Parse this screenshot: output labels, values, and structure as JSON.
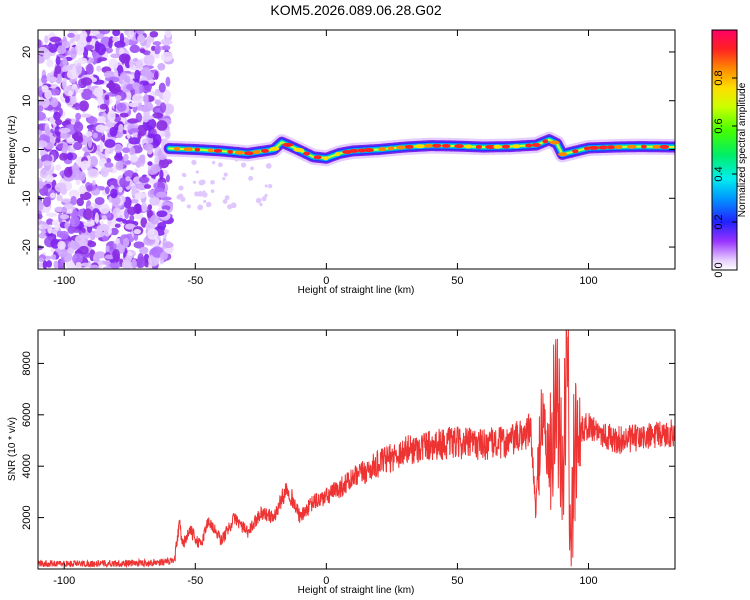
{
  "title": "KOM5.2026.089.06.28.G02",
  "chart_data": [
    {
      "type": "heatmap",
      "xlabel": "Height of straight line (km)",
      "ylabel": "Frequency (Hz)",
      "xlim": [
        -110,
        133
      ],
      "ylim": [
        -24.5,
        24.5
      ],
      "xticks": [
        -100,
        -50,
        0,
        50,
        100
      ],
      "yticks": [
        -20,
        -10,
        0,
        10,
        20
      ],
      "noise_region_x": [
        -110,
        -60
      ],
      "colorbar": {
        "label": "Normalized spectral amplitude",
        "range": [
          0.0,
          1.0
        ],
        "ticks": [
          0.0,
          0.2,
          0.4,
          0.6,
          0.8
        ],
        "colormap": "rainbow"
      },
      "ridge": {
        "x": [
          -60,
          -50,
          -40,
          -30,
          -20,
          -17,
          -12,
          -5,
          0,
          5,
          10,
          20,
          30,
          40,
          50,
          60,
          70,
          80,
          85,
          88,
          90,
          100,
          110,
          120,
          133
        ],
        "frequency": [
          0.2,
          0.0,
          -0.3,
          -0.8,
          0.0,
          1.5,
          0.3,
          -1.5,
          -1.8,
          -0.8,
          -0.3,
          0.0,
          0.5,
          0.8,
          0.7,
          0.5,
          0.6,
          0.9,
          2.0,
          1.2,
          -1.0,
          0.3,
          0.5,
          0.6,
          0.5
        ]
      }
    },
    {
      "type": "line",
      "xlabel": "Height of straight line (km)",
      "ylabel": "SNR (10 * v/v)",
      "xlim": [
        -110,
        133
      ],
      "ylim": [
        0,
        9300
      ],
      "xticks": [
        -100,
        -50,
        0,
        50,
        100
      ],
      "yticks": [
        2000,
        4000,
        6000,
        8000
      ],
      "series": [
        {
          "color": "#ee3333",
          "x": [
            -110,
            -90,
            -70,
            -58,
            -56,
            -55,
            -52,
            -48,
            -45,
            -40,
            -35,
            -30,
            -25,
            -20,
            -15,
            -10,
            -5,
            0,
            10,
            20,
            30,
            40,
            50,
            60,
            70,
            78,
            80,
            82,
            85,
            88,
            90,
            92,
            93,
            95,
            100,
            110,
            120,
            133
          ],
          "values": [
            200,
            200,
            230,
            300,
            1800,
            900,
            1500,
            900,
            1900,
            1100,
            2000,
            1400,
            2200,
            2000,
            3200,
            2000,
            2600,
            2800,
            3500,
            4100,
            4600,
            4850,
            4900,
            4850,
            4950,
            5400,
            2000,
            6200,
            4200,
            6800,
            3500,
            9300,
            600,
            5200,
            5600,
            5000,
            5100,
            5300
          ]
        }
      ]
    }
  ]
}
